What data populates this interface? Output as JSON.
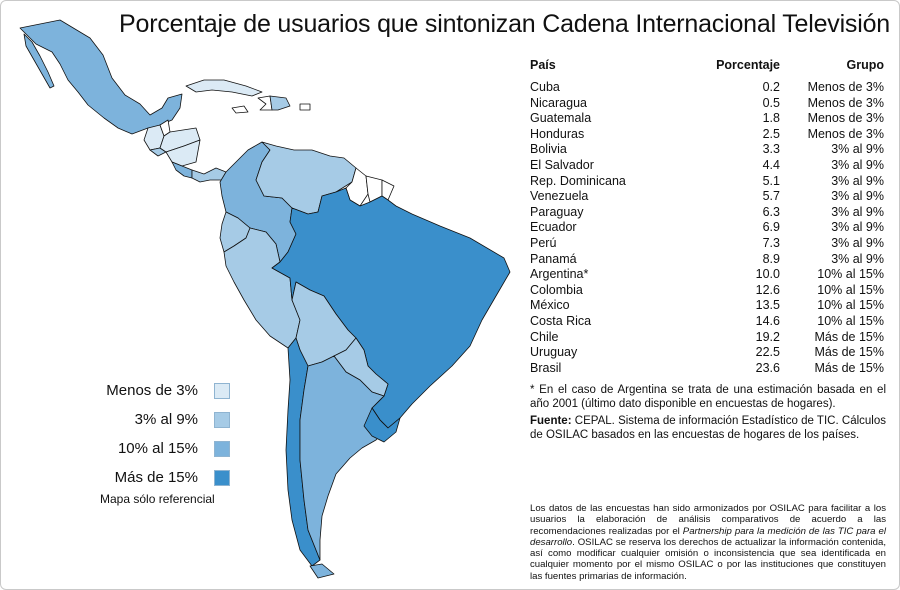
{
  "title": "Porcentaje de usuarios que sintonizan Cadena Internacional Televisión",
  "colors": {
    "group_lt3": "#dbeaf5",
    "group_3to9": "#a6cbe6",
    "group_10to15": "#7db3dc",
    "group_gt15": "#3a8fcb",
    "no_data": "#ffffff",
    "border": "#111111"
  },
  "legend": {
    "items": [
      {
        "label": "Menos de 3%",
        "color": "#dbeaf5"
      },
      {
        "label": "3% al 9%",
        "color": "#a6cbe6"
      },
      {
        "label": "10% al 15%",
        "color": "#7db3dc"
      },
      {
        "label": "Más de 15%",
        "color": "#3a8fcb"
      }
    ],
    "note": "Mapa sólo referencial"
  },
  "table": {
    "headers": {
      "country": "País",
      "percentage": "Porcentaje",
      "group": "Grupo"
    },
    "rows": [
      {
        "country": "Cuba",
        "percentage": "0.2",
        "group": "Menos de 3%"
      },
      {
        "country": "Nicaragua",
        "percentage": "0.5",
        "group": "Menos de 3%"
      },
      {
        "country": "Guatemala",
        "percentage": "1.8",
        "group": "Menos de 3%"
      },
      {
        "country": "Honduras",
        "percentage": "2.5",
        "group": "Menos de 3%"
      },
      {
        "country": "Bolivia",
        "percentage": "3.3",
        "group": "3% al 9%"
      },
      {
        "country": "El Salvador",
        "percentage": "4.4",
        "group": "3% al 9%"
      },
      {
        "country": "Rep. Dominicana",
        "percentage": "5.1",
        "group": "3% al 9%"
      },
      {
        "country": "Venezuela",
        "percentage": "5.7",
        "group": "3% al 9%"
      },
      {
        "country": "Paraguay",
        "percentage": "6.3",
        "group": "3% al 9%"
      },
      {
        "country": "Ecuador",
        "percentage": "6.9",
        "group": "3% al 9%"
      },
      {
        "country": "Perú",
        "percentage": "7.3",
        "group": "3% al 9%"
      },
      {
        "country": "Panamá",
        "percentage": "8.9",
        "group": "3% al 9%"
      },
      {
        "country": "Argentina*",
        "percentage": "10.0",
        "group": "10% al 15%"
      },
      {
        "country": "Colombia",
        "percentage": "12.6",
        "group": "10% al 15%"
      },
      {
        "country": "México",
        "percentage": "13.5",
        "group": "10% al 15%"
      },
      {
        "country": "Costa Rica",
        "percentage": "14.6",
        "group": "10% al 15%"
      },
      {
        "country": "Chile",
        "percentage": "19.2",
        "group": "Más de 15%"
      },
      {
        "country": "Uruguay",
        "percentage": "22.5",
        "group": "Más de 15%"
      },
      {
        "country": "Brasil",
        "percentage": "23.6",
        "group": "Más de 15%"
      }
    ]
  },
  "footnote": "* En el caso de Argentina se trata de una estimación basada en el año 2001 (último dato disponible en encuestas de hogares).",
  "source": {
    "label": "Fuente:",
    "text": " CEPAL. Sistema de información Estadístico de TIC. Cálculos de OSILAC basados en las encuestas de hogares de los países."
  },
  "disclaimer": {
    "part1": "Los datos de las encuestas han sido armonizados por OSILAC para facilitar a los usuarios la elaboración de análisis comparativos de acuerdo a las recomendaciones realizadas por el ",
    "part2": "Partnership para la medición de las TIC para el desarrollo",
    "part3": ". OSILAC se reserva los derechos de actualizar la información contenida, así como modificar cualquier omisión o inconsistencia que sea identificada en cualquier momento por el mismo OSILAC o por las instituciones que constituyen las fuentes primarias de información."
  },
  "map": {
    "countries": [
      {
        "name": "Mexico",
        "group": "group_10to15",
        "icon": "mexico-shape"
      },
      {
        "name": "Guatemala",
        "group": "group_lt3",
        "icon": "guatemala-shape"
      },
      {
        "name": "Belize",
        "group": "no_data",
        "icon": "belize-shape"
      },
      {
        "name": "Honduras",
        "group": "group_lt3",
        "icon": "honduras-shape"
      },
      {
        "name": "El Salvador",
        "group": "group_3to9",
        "icon": "el-salvador-shape"
      },
      {
        "name": "Nicaragua",
        "group": "group_lt3",
        "icon": "nicaragua-shape"
      },
      {
        "name": "Costa Rica",
        "group": "group_10to15",
        "icon": "costa-rica-shape"
      },
      {
        "name": "Panama",
        "group": "group_3to9",
        "icon": "panama-shape"
      },
      {
        "name": "Cuba",
        "group": "group_lt3",
        "icon": "cuba-shape"
      },
      {
        "name": "Jamaica",
        "group": "no_data",
        "icon": "jamaica-shape"
      },
      {
        "name": "Haiti",
        "group": "no_data",
        "icon": "haiti-shape"
      },
      {
        "name": "Dominican Republic",
        "group": "group_3to9",
        "icon": "dominican-republic-shape"
      },
      {
        "name": "Puerto Rico",
        "group": "no_data",
        "icon": "puerto-rico-shape"
      },
      {
        "name": "Colombia",
        "group": "group_10to15",
        "icon": "colombia-shape"
      },
      {
        "name": "Venezuela",
        "group": "group_3to9",
        "icon": "venezuela-shape"
      },
      {
        "name": "Guyana",
        "group": "no_data",
        "icon": "guyana-shape"
      },
      {
        "name": "Suriname",
        "group": "no_data",
        "icon": "suriname-shape"
      },
      {
        "name": "French Guiana",
        "group": "no_data",
        "icon": "french-guiana-shape"
      },
      {
        "name": "Ecuador",
        "group": "group_3to9",
        "icon": "ecuador-shape"
      },
      {
        "name": "Peru",
        "group": "group_3to9",
        "icon": "peru-shape"
      },
      {
        "name": "Brazil",
        "group": "group_gt15",
        "icon": "brazil-shape"
      },
      {
        "name": "Bolivia",
        "group": "group_3to9",
        "icon": "bolivia-shape"
      },
      {
        "name": "Paraguay",
        "group": "group_3to9",
        "icon": "paraguay-shape"
      },
      {
        "name": "Chile",
        "group": "group_gt15",
        "icon": "chile-shape"
      },
      {
        "name": "Argentina",
        "group": "group_10to15",
        "icon": "argentina-shape"
      },
      {
        "name": "Uruguay",
        "group": "group_gt15",
        "icon": "uruguay-shape"
      }
    ]
  }
}
